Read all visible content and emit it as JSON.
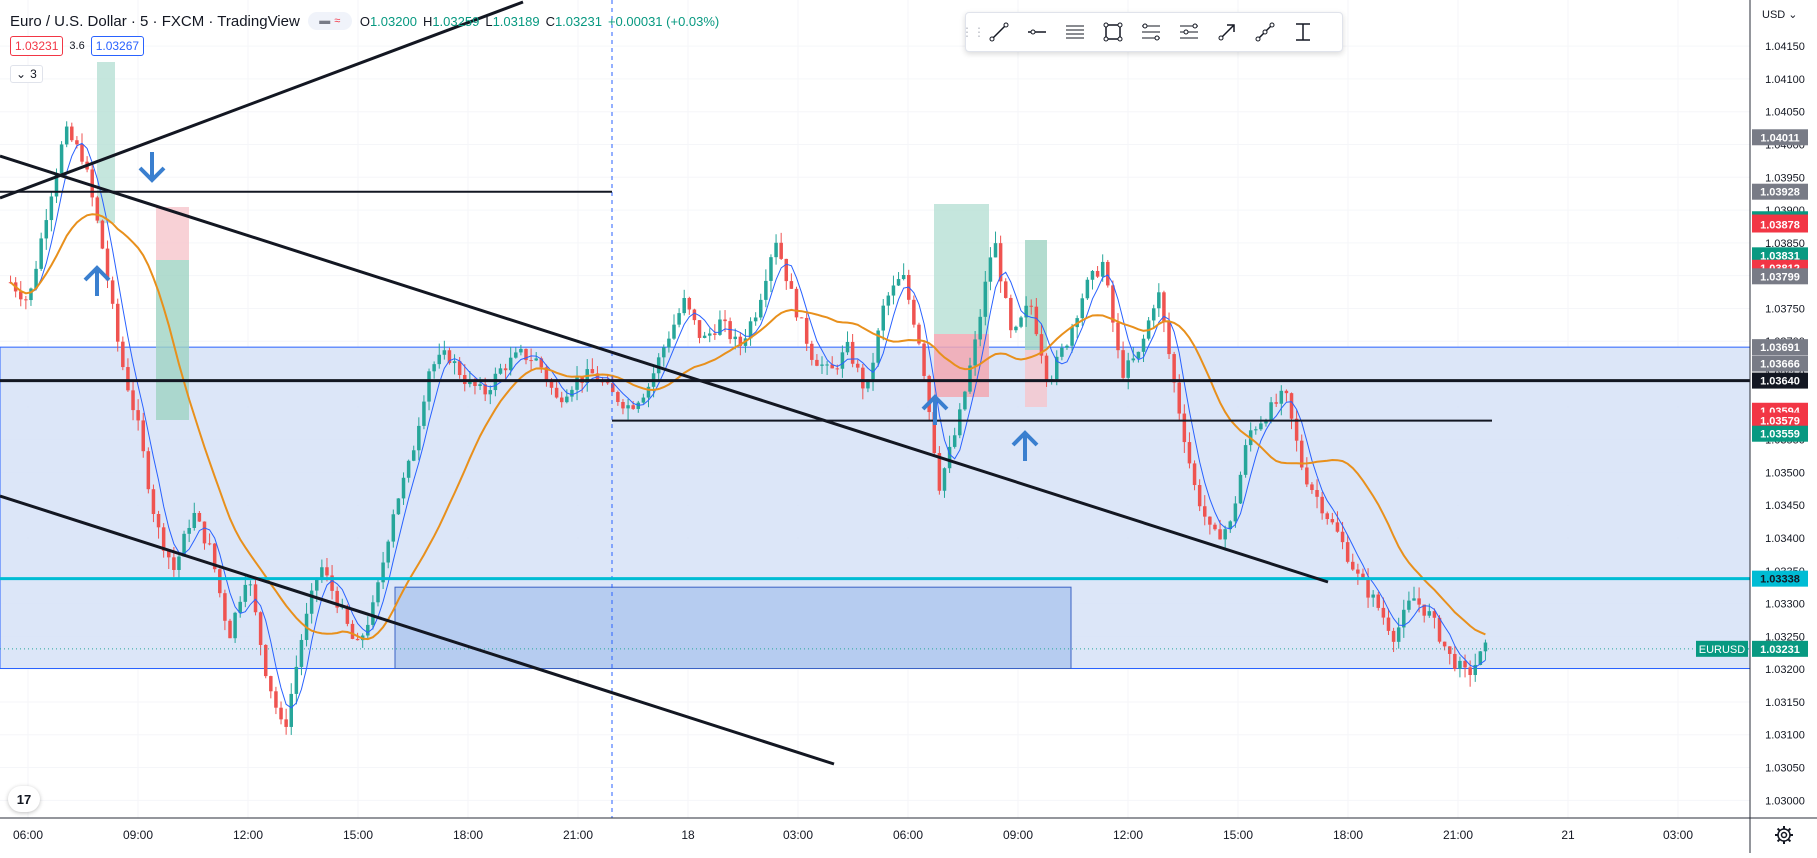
{
  "header": {
    "title": "Euro / U.S. Dollar · 5 · FXCM · TradingView",
    "compare_icons": [
      "bars-icon",
      "wave-icon"
    ],
    "ohlc": [
      {
        "label": "O",
        "value": "1.03200"
      },
      {
        "label": "H",
        "value": "1.03259"
      },
      {
        "label": "L",
        "value": "1.03189"
      },
      {
        "label": "C",
        "value": "1.03231"
      }
    ],
    "change": "+0.00031 (+0.03%)",
    "sell_price": "1.03231",
    "spread": "3.6",
    "buy_price": "1.03267",
    "indicators_count": "3"
  },
  "toolbar": {
    "tools": [
      "trend-line-icon",
      "horizontal-line-icon",
      "parallel-channel-icon",
      "rectangle-icon",
      "fib-retracement-icon",
      "fib-extension-icon",
      "arrow-tool-icon",
      "path-tool-icon",
      "measure-icon"
    ]
  },
  "currency": "USD",
  "symbol_tag": "EURUSD",
  "logo_text": "17",
  "colors": {
    "up": "#26a69a",
    "down": "#ef5350",
    "ma_fast": "#2962ff",
    "ma_slow": "#e8901c",
    "zone_fill": "#d6e2f7",
    "zone_border": "#2962ff",
    "cyan_line": "#00bcd4",
    "arrow": "#3a7fcf"
  },
  "chart_data": {
    "type": "candlestick",
    "symbol": "EURUSD",
    "interval": "5",
    "ylim": [
      1.0297,
      1.0417
    ],
    "xlim_labels": [
      "06:00",
      "09:00",
      "12:00",
      "15:00",
      "18:00",
      "21:00",
      "18",
      "03:00",
      "06:00",
      "09:00",
      "12:00",
      "15:00",
      "18:00",
      "21:00",
      "21",
      "03:00"
    ],
    "price_ticks": [
      "1.04150",
      "1.04100",
      "1.04050",
      "1.04000",
      "1.03950",
      "1.03900",
      "1.03850",
      "1.03800",
      "1.03750",
      "1.03700",
      "1.03650",
      "1.03600",
      "1.03550",
      "1.03500",
      "1.03450",
      "1.03400",
      "1.03350",
      "1.03300",
      "1.03250",
      "1.03200",
      "1.03150",
      "1.03100",
      "1.03050",
      "1.03000"
    ],
    "price_path": [
      {
        "x": "06:00",
        "y": 1.0379
      },
      {
        "x": "07:00",
        "y": 1.0376
      },
      {
        "x": "08:00",
        "y": 1.039
      },
      {
        "x": "08:30",
        "y": 1.0402
      },
      {
        "x": "09:00",
        "y": 1.0398
      },
      {
        "x": "09:30",
        "y": 1.0385
      },
      {
        "x": "10:00",
        "y": 1.0368
      },
      {
        "x": "10:30",
        "y": 1.0357
      },
      {
        "x": "11:00",
        "y": 1.0342
      },
      {
        "x": "11:30",
        "y": 1.0335
      },
      {
        "x": "12:00",
        "y": 1.0344
      },
      {
        "x": "12:30",
        "y": 1.0338
      },
      {
        "x": "13:00",
        "y": 1.0325
      },
      {
        "x": "13:30",
        "y": 1.0335
      },
      {
        "x": "14:00",
        "y": 1.032
      },
      {
        "x": "14:30",
        "y": 1.031
      },
      {
        "x": "15:00",
        "y": 1.0325
      },
      {
        "x": "15:30",
        "y": 1.0336
      },
      {
        "x": "16:00",
        "y": 1.033
      },
      {
        "x": "16:30",
        "y": 1.0323
      },
      {
        "x": "17:00",
        "y": 1.033
      },
      {
        "x": "17:30",
        "y": 1.0344
      },
      {
        "x": "18:00",
        "y": 1.0352
      },
      {
        "x": "18:30",
        "y": 1.0366
      },
      {
        "x": "19:00",
        "y": 1.0368
      },
      {
        "x": "19:30",
        "y": 1.0364
      },
      {
        "x": "20:00",
        "y": 1.0362
      },
      {
        "x": "20:30",
        "y": 1.0366
      },
      {
        "x": "21:00",
        "y": 1.0368
      },
      {
        "x": "21:30",
        "y": 1.0367
      },
      {
        "x": "22:00",
        "y": 1.0361
      },
      {
        "x": "22:30",
        "y": 1.0364
      },
      {
        "x": "23:00",
        "y": 1.0365
      },
      {
        "x": "23:30",
        "y": 1.0362
      },
      {
        "x": "00:00",
        "y": 1.036
      },
      {
        "x": "00:30",
        "y": 1.0363
      },
      {
        "x": "01:00",
        "y": 1.037
      },
      {
        "x": "01:30",
        "y": 1.0376
      },
      {
        "x": "02:00",
        "y": 1.037
      },
      {
        "x": "02:30",
        "y": 1.0373
      },
      {
        "x": "03:00",
        "y": 1.0369
      },
      {
        "x": "03:30",
        "y": 1.0375
      },
      {
        "x": "04:00",
        "y": 1.0386
      },
      {
        "x": "04:30",
        "y": 1.0376
      },
      {
        "x": "05:00",
        "y": 1.0368
      },
      {
        "x": "05:30",
        "y": 1.0365
      },
      {
        "x": "06:00",
        "y": 1.0369
      },
      {
        "x": "06:30",
        "y": 1.0362
      },
      {
        "x": "07:00",
        "y": 1.0376
      },
      {
        "x": "07:30",
        "y": 1.038
      },
      {
        "x": "08:00",
        "y": 1.0369
      },
      {
        "x": "08:30",
        "y": 1.0348
      },
      {
        "x": "09:00",
        "y": 1.0357
      },
      {
        "x": "09:30",
        "y": 1.037
      },
      {
        "x": "10:00",
        "y": 1.0386
      },
      {
        "x": "10:30",
        "y": 1.037
      },
      {
        "x": "11:00",
        "y": 1.0376
      },
      {
        "x": "11:30",
        "y": 1.0364
      },
      {
        "x": "12:00",
        "y": 1.037
      },
      {
        "x": "12:30",
        "y": 1.0378
      },
      {
        "x": "13:00",
        "y": 1.0382
      },
      {
        "x": "13:30",
        "y": 1.0365
      },
      {
        "x": "14:00",
        "y": 1.0368
      },
      {
        "x": "14:30",
        "y": 1.0378
      },
      {
        "x": "15:00",
        "y": 1.0362
      },
      {
        "x": "15:30",
        "y": 1.0348
      },
      {
        "x": "16:00",
        "y": 1.034
      },
      {
        "x": "16:30",
        "y": 1.0342
      },
      {
        "x": "17:00",
        "y": 1.0356
      },
      {
        "x": "17:30",
        "y": 1.0359
      },
      {
        "x": "18:00",
        "y": 1.0362
      },
      {
        "x": "18:30",
        "y": 1.035
      },
      {
        "x": "19:00",
        "y": 1.0345
      },
      {
        "x": "19:30",
        "y": 1.034
      },
      {
        "x": "20:00",
        "y": 1.0334
      },
      {
        "x": "20:30",
        "y": 1.033
      },
      {
        "x": "21:00",
        "y": 1.0325
      },
      {
        "x": "21:30",
        "y": 1.0331
      },
      {
        "x": "22:00",
        "y": 1.0328
      },
      {
        "x": "22:30",
        "y": 1.0322
      },
      {
        "x": "23:00",
        "y": 1.0319
      },
      {
        "x": "23:30",
        "y": 1.03231
      }
    ],
    "horizontal_levels": [
      {
        "price": 1.03928,
        "label": "1.03928",
        "style": "black"
      },
      {
        "price": 1.0364,
        "label": "1.03640",
        "style": "black-thick"
      },
      {
        "price": 1.03579,
        "label": "1.03579",
        "style": "black"
      },
      {
        "price": 1.03338,
        "label": "1.03338",
        "style": "cyan"
      }
    ],
    "price_labels": [
      {
        "value": "1.04011",
        "kind": "gray"
      },
      {
        "value": "1.03928",
        "kind": "gray"
      },
      {
        "value": "1.03886",
        "kind": "green"
      },
      {
        "value": "1.03881",
        "kind": "red"
      },
      {
        "value": "1.03878",
        "kind": "red"
      },
      {
        "value": "1.03831",
        "kind": "green"
      },
      {
        "value": "1.03812",
        "kind": "red"
      },
      {
        "value": "1.03799",
        "kind": "gray"
      },
      {
        "value": "1.03691",
        "kind": "gray"
      },
      {
        "value": "1.03666",
        "kind": "gray"
      },
      {
        "value": "1.03640",
        "kind": "black"
      },
      {
        "value": "1.03594",
        "kind": "red"
      },
      {
        "value": "1.03579",
        "kind": "red"
      },
      {
        "value": "1.03559",
        "kind": "green"
      },
      {
        "value": "1.03338",
        "kind": "cyan"
      },
      {
        "value": "1.03231",
        "kind": "green"
      }
    ]
  }
}
